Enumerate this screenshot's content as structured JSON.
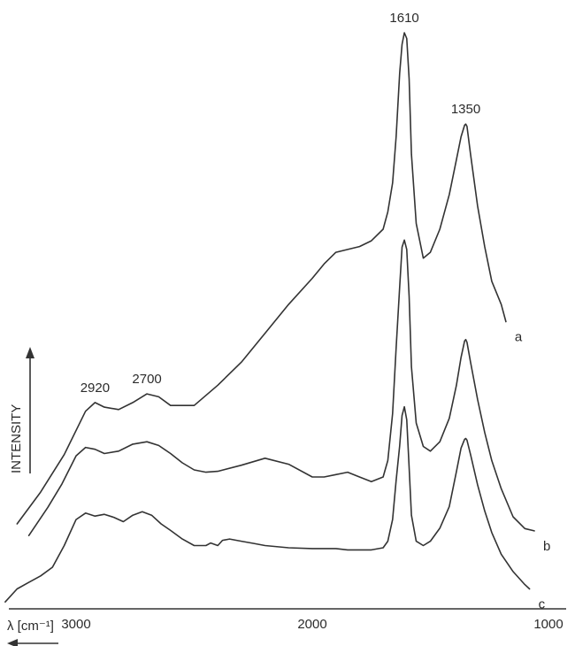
{
  "chart_data": {
    "type": "line",
    "title": "",
    "xlabel": "λ [cm⁻¹]",
    "ylabel": "INTENSITY",
    "x_reversed": true,
    "xlim": [
      3300,
      1000
    ],
    "ylim": [
      0,
      1
    ],
    "grid": false,
    "legend": "none",
    "x_ticks": [
      3000,
      2000,
      1000
    ],
    "x_tick_labels": [
      "3000",
      "2000",
      "1000"
    ],
    "annotations": [
      {
        "text": "1610",
        "x": 1610
      },
      {
        "text": "1350",
        "x": 1350
      },
      {
        "text": "2920",
        "x": 2920
      },
      {
        "text": "2700",
        "x": 2700
      }
    ],
    "series": [
      {
        "name": "a",
        "x": [
          3250,
          3150,
          3050,
          2960,
          2920,
          2880,
          2820,
          2760,
          2700,
          2650,
          2600,
          2500,
          2400,
          2300,
          2200,
          2100,
          2000,
          1950,
          1900,
          1850,
          1800,
          1750,
          1700,
          1680,
          1660,
          1645,
          1630,
          1620,
          1610,
          1600,
          1590,
          1580,
          1560,
          1530,
          1500,
          1460,
          1420,
          1390,
          1370,
          1355,
          1350,
          1345,
          1330,
          1300,
          1270,
          1240,
          1200,
          1180
        ],
        "y": [
          0.15,
          0.205,
          0.27,
          0.345,
          0.36,
          0.352,
          0.348,
          0.36,
          0.375,
          0.37,
          0.355,
          0.355,
          0.39,
          0.43,
          0.48,
          0.53,
          0.575,
          0.6,
          0.62,
          0.625,
          0.63,
          0.64,
          0.66,
          0.69,
          0.74,
          0.82,
          0.93,
          0.98,
          1.0,
          0.99,
          0.92,
          0.79,
          0.67,
          0.61,
          0.62,
          0.66,
          0.72,
          0.78,
          0.82,
          0.84,
          0.842,
          0.838,
          0.79,
          0.7,
          0.63,
          0.57,
          0.53,
          0.5
        ]
      },
      {
        "name": "b",
        "x": [
          3200,
          3120,
          3060,
          3000,
          2960,
          2920,
          2880,
          2820,
          2760,
          2700,
          2650,
          2600,
          2550,
          2500,
          2450,
          2400,
          2300,
          2200,
          2100,
          2000,
          1950,
          1900,
          1850,
          1800,
          1750,
          1700,
          1680,
          1660,
          1645,
          1630,
          1620,
          1610,
          1600,
          1590,
          1580,
          1560,
          1530,
          1500,
          1460,
          1420,
          1390,
          1370,
          1355,
          1350,
          1345,
          1330,
          1300,
          1270,
          1240,
          1200,
          1150,
          1100,
          1060
        ],
        "y": [
          0.16,
          0.22,
          0.27,
          0.33,
          0.348,
          0.344,
          0.335,
          0.34,
          0.355,
          0.36,
          0.352,
          0.335,
          0.315,
          0.3,
          0.295,
          0.297,
          0.31,
          0.325,
          0.312,
          0.285,
          0.285,
          0.29,
          0.295,
          0.285,
          0.275,
          0.285,
          0.32,
          0.42,
          0.56,
          0.69,
          0.775,
          0.79,
          0.77,
          0.67,
          0.52,
          0.4,
          0.35,
          0.34,
          0.36,
          0.41,
          0.48,
          0.54,
          0.575,
          0.578,
          0.572,
          0.53,
          0.45,
          0.38,
          0.32,
          0.26,
          0.2,
          0.175,
          0.17
        ]
      },
      {
        "name": "c",
        "x": [
          3300,
          3250,
          3200,
          3150,
          3100,
          3050,
          3000,
          2960,
          2920,
          2880,
          2840,
          2800,
          2760,
          2720,
          2680,
          2640,
          2600,
          2550,
          2500,
          2450,
          2430,
          2400,
          2380,
          2350,
          2300,
          2250,
          2200,
          2100,
          2000,
          1900,
          1850,
          1800,
          1750,
          1700,
          1680,
          1660,
          1645,
          1630,
          1620,
          1610,
          1600,
          1590,
          1580,
          1560,
          1530,
          1500,
          1460,
          1420,
          1390,
          1370,
          1355,
          1350,
          1345,
          1330,
          1300,
          1270,
          1240,
          1200,
          1150,
          1100,
          1080
        ],
        "y": [
          0.02,
          0.05,
          0.065,
          0.08,
          0.1,
          0.15,
          0.21,
          0.225,
          0.218,
          0.222,
          0.215,
          0.205,
          0.22,
          0.228,
          0.22,
          0.2,
          0.185,
          0.165,
          0.15,
          0.15,
          0.156,
          0.15,
          0.162,
          0.165,
          0.16,
          0.155,
          0.15,
          0.145,
          0.143,
          0.143,
          0.14,
          0.14,
          0.14,
          0.145,
          0.16,
          0.21,
          0.3,
          0.38,
          0.45,
          0.47,
          0.44,
          0.33,
          0.22,
          0.16,
          0.15,
          0.16,
          0.19,
          0.24,
          0.32,
          0.375,
          0.395,
          0.397,
          0.393,
          0.36,
          0.29,
          0.23,
          0.18,
          0.13,
          0.09,
          0.06,
          0.05
        ]
      }
    ]
  }
}
